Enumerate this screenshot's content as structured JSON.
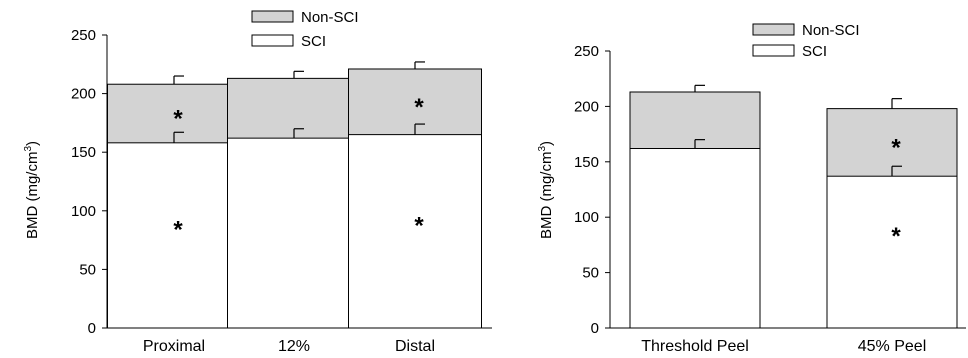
{
  "chart_data": [
    {
      "type": "bar",
      "stacked": "overlay",
      "categories": [
        "Proximal",
        "12%",
        "Distal"
      ],
      "series": [
        {
          "name": "Non-SCI",
          "color": "#d3d3d3",
          "values": [
            208,
            213,
            221
          ],
          "error": [
            7,
            6,
            6
          ]
        },
        {
          "name": "SCI",
          "color": "#ffffff",
          "values": [
            158,
            162,
            165
          ],
          "error": [
            9,
            8,
            9
          ]
        }
      ],
      "ylabel": "BMD (mg/cm³)",
      "ylim": [
        0,
        250
      ],
      "yticks": [
        0,
        50,
        100,
        150,
        200,
        250
      ],
      "legend": "top",
      "grid": false,
      "significance": {
        "Non-SCI": [
          true,
          false,
          true
        ],
        "SCI": [
          true,
          false,
          true
        ]
      },
      "significance_marker": "*"
    },
    {
      "type": "bar",
      "stacked": "overlay",
      "categories": [
        "Threshold Peel",
        "45% Peel"
      ],
      "series": [
        {
          "name": "Non-SCI",
          "color": "#d3d3d3",
          "values": [
            213,
            198
          ],
          "error": [
            6,
            9
          ]
        },
        {
          "name": "SCI",
          "color": "#ffffff",
          "values": [
            162,
            137
          ],
          "error": [
            8,
            9
          ]
        }
      ],
      "ylabel": "BMD (mg/cm³)",
      "ylim": [
        0,
        250
      ],
      "yticks": [
        0,
        50,
        100,
        150,
        200,
        250
      ],
      "legend": "top",
      "grid": false,
      "significance": {
        "Non-SCI": [
          false,
          true
        ],
        "SCI": [
          false,
          true
        ]
      },
      "significance_marker": "*"
    }
  ]
}
